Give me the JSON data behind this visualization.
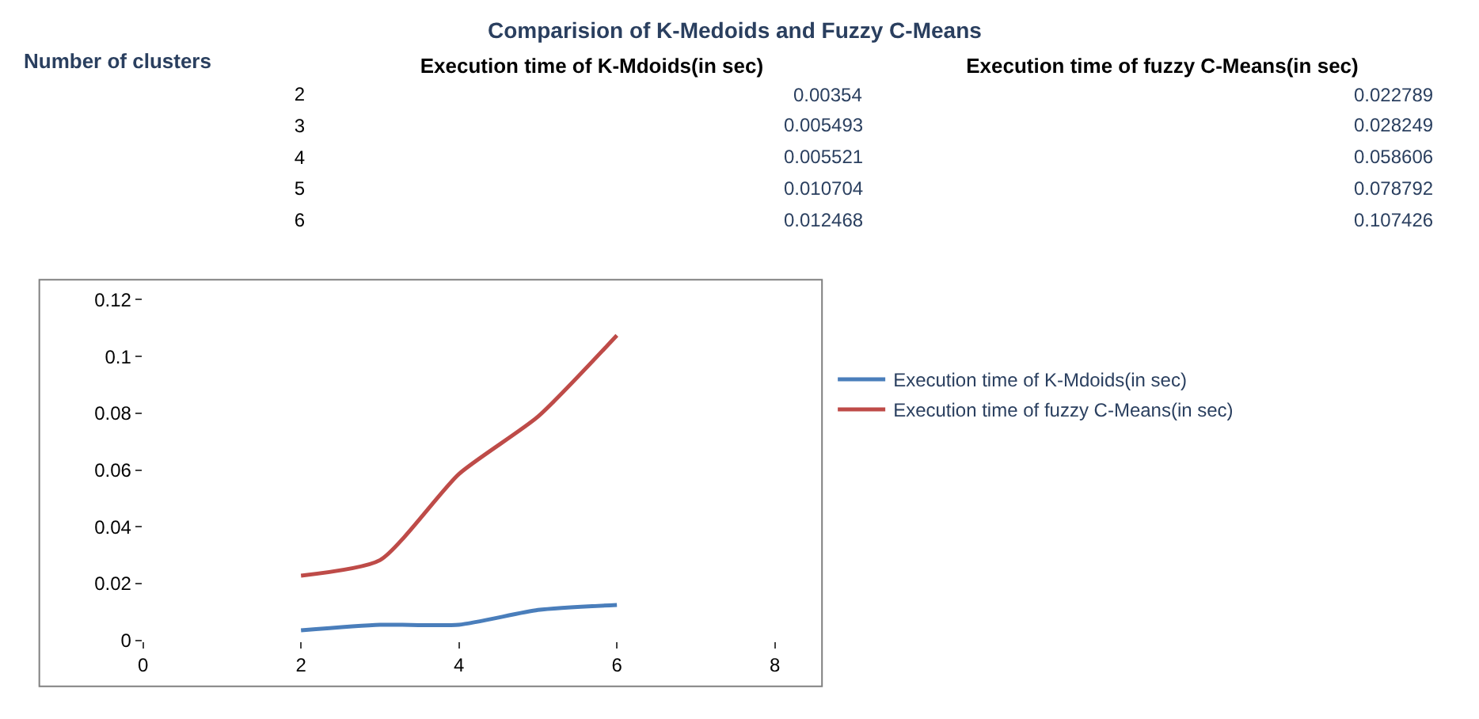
{
  "chart_data": [
    {
      "type": "heatmap",
      "title": "Comparision of K-Medoids and Fuzzy C-Means",
      "ylabel": "Number of clusters",
      "categories": [
        "Execution time of K-Mdoids(in sec)",
        "Execution time of fuzzy C-Means(in sec)"
      ],
      "y_categories": [
        "2",
        "3",
        "4",
        "5",
        "6"
      ],
      "cells": [
        [
          0.00354,
          0.022789
        ],
        [
          0.005493,
          0.028249
        ],
        [
          0.005521,
          0.058606
        ],
        [
          0.010704,
          0.078792
        ],
        [
          0.012468,
          0.107426
        ]
      ],
      "data_labels": true
    },
    {
      "type": "line",
      "x": [
        2,
        3,
        4,
        5,
        6
      ],
      "series": [
        {
          "name": "Execution time of K-Mdoids(in sec)",
          "color": "#4a7ebb",
          "values": [
            0.00354,
            0.005493,
            0.005521,
            0.010704,
            0.012468
          ]
        },
        {
          "name": "Execution time of fuzzy C-Means(in sec)",
          "color": "#be4b48",
          "values": [
            0.022789,
            0.028249,
            0.058606,
            0.078792,
            0.107426
          ]
        }
      ],
      "xlim": [
        0,
        8
      ],
      "xticks": [
        0,
        2,
        4,
        6,
        8
      ],
      "ylim": [
        0,
        0.12
      ],
      "yticks": [
        0,
        0.02,
        0.04,
        0.06,
        0.08,
        0.1,
        0.12
      ],
      "grid": false,
      "legend": "right",
      "marker": "none",
      "line_style": "solid"
    }
  ]
}
